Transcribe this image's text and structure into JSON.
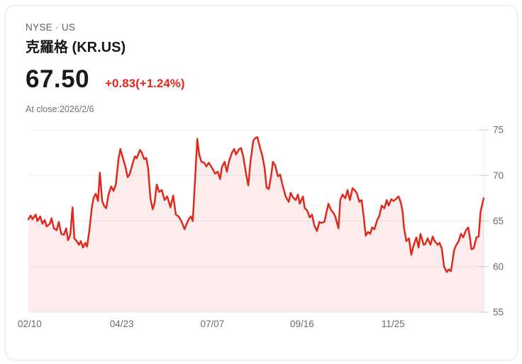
{
  "header": {
    "exchange_line": "NYSE · US",
    "stock_name": "克羅格 (KR.US)",
    "price": "67.50",
    "change": "+0.83(+1.24%)",
    "as_of": "At close:2026/2/6"
  },
  "colors": {
    "line": "#dd2a1e",
    "fill": "rgba(224,38,30,0.085)",
    "change_text": "#e2271d",
    "grid": "#ededf0",
    "tick": "#c7c7cc",
    "axis_line": "#e8e8ec",
    "axis_text": "#6b6b70",
    "card_border": "#e2e6f0"
  },
  "chart_data": {
    "type": "area",
    "title": "KR.US 1-year closing price",
    "xlabel": "",
    "ylabel": "",
    "legend": "none",
    "grid": true,
    "y_axis": {
      "position": "right",
      "min": 55,
      "max": 75,
      "ticks": [
        75,
        70,
        65,
        60,
        55
      ]
    },
    "x_axis": {
      "labels": [
        {
          "label": "02/10",
          "f": 0.003
        },
        {
          "label": "04/23",
          "f": 0.205
        },
        {
          "label": "07/07",
          "f": 0.404
        },
        {
          "label": "09/16",
          "f": 0.601
        },
        {
          "label": "11/25",
          "f": 0.801
        }
      ]
    },
    "series": [
      {
        "name": "close",
        "points": [
          [
            0.0,
            65.2
          ],
          [
            0.005,
            65.6
          ],
          [
            0.009,
            65.2
          ],
          [
            0.016,
            65.7
          ],
          [
            0.02,
            65.0
          ],
          [
            0.026,
            65.5
          ],
          [
            0.031,
            64.7
          ],
          [
            0.036,
            65.1
          ],
          [
            0.04,
            64.4
          ],
          [
            0.047,
            64.7
          ],
          [
            0.051,
            65.3
          ],
          [
            0.056,
            64.2
          ],
          [
            0.062,
            64.0
          ],
          [
            0.067,
            64.9
          ],
          [
            0.072,
            63.6
          ],
          [
            0.078,
            63.5
          ],
          [
            0.083,
            64.2
          ],
          [
            0.087,
            62.9
          ],
          [
            0.092,
            63.5
          ],
          [
            0.097,
            66.5
          ],
          [
            0.101,
            63.1
          ],
          [
            0.106,
            62.8
          ],
          [
            0.111,
            62.4
          ],
          [
            0.115,
            62.8
          ],
          [
            0.12,
            62.1
          ],
          [
            0.125,
            62.6
          ],
          [
            0.129,
            62.2
          ],
          [
            0.134,
            64.0
          ],
          [
            0.139,
            66.3
          ],
          [
            0.143,
            67.5
          ],
          [
            0.148,
            68.0
          ],
          [
            0.153,
            67.2
          ],
          [
            0.157,
            70.3
          ],
          [
            0.162,
            67.2
          ],
          [
            0.167,
            66.6
          ],
          [
            0.171,
            66.4
          ],
          [
            0.176,
            67.9
          ],
          [
            0.182,
            68.8
          ],
          [
            0.187,
            68.3
          ],
          [
            0.192,
            69.0
          ],
          [
            0.198,
            71.8
          ],
          [
            0.202,
            72.9
          ],
          [
            0.207,
            72.0
          ],
          [
            0.213,
            71.0
          ],
          [
            0.218,
            69.8
          ],
          [
            0.223,
            70.2
          ],
          [
            0.229,
            71.3
          ],
          [
            0.234,
            72.1
          ],
          [
            0.238,
            71.9
          ],
          [
            0.245,
            72.8
          ],
          [
            0.249,
            72.5
          ],
          [
            0.254,
            71.8
          ],
          [
            0.259,
            71.9
          ],
          [
            0.263,
            70.8
          ],
          [
            0.268,
            67.5
          ],
          [
            0.273,
            66.3
          ],
          [
            0.277,
            66.9
          ],
          [
            0.282,
            69.0
          ],
          [
            0.287,
            68.2
          ],
          [
            0.293,
            68.4
          ],
          [
            0.299,
            67.3
          ],
          [
            0.305,
            67.7
          ],
          [
            0.312,
            66.5
          ],
          [
            0.318,
            67.8
          ],
          [
            0.324,
            65.7
          ],
          [
            0.33,
            65.5
          ],
          [
            0.336,
            65.0
          ],
          [
            0.343,
            64.1
          ],
          [
            0.347,
            64.6
          ],
          [
            0.352,
            65.2
          ],
          [
            0.357,
            65.5
          ],
          [
            0.361,
            65.0
          ],
          [
            0.366,
            69.5
          ],
          [
            0.371,
            74.0
          ],
          [
            0.375,
            72.3
          ],
          [
            0.38,
            71.5
          ],
          [
            0.386,
            71.4
          ],
          [
            0.391,
            71.0
          ],
          [
            0.396,
            71.4
          ],
          [
            0.4,
            71.1
          ],
          [
            0.405,
            70.7
          ],
          [
            0.41,
            70.2
          ],
          [
            0.416,
            70.4
          ],
          [
            0.421,
            69.6
          ],
          [
            0.425,
            70.9
          ],
          [
            0.431,
            71.5
          ],
          [
            0.436,
            70.4
          ],
          [
            0.441,
            71.6
          ],
          [
            0.447,
            72.5
          ],
          [
            0.452,
            72.9
          ],
          [
            0.456,
            72.3
          ],
          [
            0.463,
            72.9
          ],
          [
            0.467,
            73.0
          ],
          [
            0.472,
            72.1
          ],
          [
            0.478,
            70.2
          ],
          [
            0.483,
            68.9
          ],
          [
            0.487,
            71.2
          ],
          [
            0.494,
            73.8
          ],
          [
            0.498,
            74.1
          ],
          [
            0.503,
            74.2
          ],
          [
            0.509,
            73.0
          ],
          [
            0.514,
            72.1
          ],
          [
            0.519,
            70.8
          ],
          [
            0.523,
            68.7
          ],
          [
            0.528,
            68.5
          ],
          [
            0.533,
            69.9
          ],
          [
            0.537,
            71.5
          ],
          [
            0.542,
            71.1
          ],
          [
            0.548,
            69.9
          ],
          [
            0.553,
            70.1
          ],
          [
            0.558,
            69.0
          ],
          [
            0.565,
            67.7
          ],
          [
            0.572,
            67.1
          ],
          [
            0.576,
            68.1
          ],
          [
            0.581,
            67.6
          ],
          [
            0.587,
            67.3
          ],
          [
            0.592,
            67.9
          ],
          [
            0.596,
            66.9
          ],
          [
            0.603,
            67.7
          ],
          [
            0.607,
            66.4
          ],
          [
            0.612,
            66.2
          ],
          [
            0.618,
            65.4
          ],
          [
            0.623,
            65.7
          ],
          [
            0.628,
            64.5
          ],
          [
            0.634,
            63.9
          ],
          [
            0.639,
            64.9
          ],
          [
            0.643,
            64.8
          ],
          [
            0.65,
            64.9
          ],
          [
            0.654,
            65.8
          ],
          [
            0.659,
            66.9
          ],
          [
            0.665,
            66.2
          ],
          [
            0.67,
            65.9
          ],
          [
            0.674,
            65.5
          ],
          [
            0.681,
            64.2
          ],
          [
            0.685,
            67.3
          ],
          [
            0.69,
            67.9
          ],
          [
            0.696,
            67.5
          ],
          [
            0.701,
            68.4
          ],
          [
            0.706,
            67.3
          ],
          [
            0.712,
            68.6
          ],
          [
            0.716,
            68.4
          ],
          [
            0.721,
            68.1
          ],
          [
            0.727,
            67.1
          ],
          [
            0.732,
            67.3
          ],
          [
            0.737,
            65.2
          ],
          [
            0.741,
            63.4
          ],
          [
            0.746,
            63.8
          ],
          [
            0.751,
            63.6
          ],
          [
            0.755,
            64.3
          ],
          [
            0.76,
            64.1
          ],
          [
            0.766,
            65.1
          ],
          [
            0.771,
            65.6
          ],
          [
            0.776,
            66.7
          ],
          [
            0.782,
            66.4
          ],
          [
            0.787,
            67.3
          ],
          [
            0.791,
            66.7
          ],
          [
            0.797,
            67.4
          ],
          [
            0.802,
            67.2
          ],
          [
            0.807,
            67.4
          ],
          [
            0.813,
            67.7
          ],
          [
            0.818,
            67.0
          ],
          [
            0.822,
            66.0
          ],
          [
            0.825,
            64.3
          ],
          [
            0.83,
            62.8
          ],
          [
            0.836,
            63.1
          ],
          [
            0.841,
            61.3
          ],
          [
            0.846,
            62.3
          ],
          [
            0.852,
            63.2
          ],
          [
            0.857,
            62.1
          ],
          [
            0.861,
            63.6
          ],
          [
            0.868,
            62.4
          ],
          [
            0.872,
            62.5
          ],
          [
            0.877,
            63.1
          ],
          [
            0.883,
            62.4
          ],
          [
            0.888,
            63.3
          ],
          [
            0.892,
            62.8
          ],
          [
            0.899,
            62.4
          ],
          [
            0.903,
            62.6
          ],
          [
            0.908,
            62.0
          ],
          [
            0.913,
            60.0
          ],
          [
            0.919,
            59.4
          ],
          [
            0.923,
            59.7
          ],
          [
            0.928,
            59.5
          ],
          [
            0.935,
            61.8
          ],
          [
            0.939,
            62.3
          ],
          [
            0.945,
            62.8
          ],
          [
            0.95,
            63.6
          ],
          [
            0.955,
            63.2
          ],
          [
            0.961,
            64.0
          ],
          [
            0.966,
            64.3
          ],
          [
            0.97,
            63.1
          ],
          [
            0.973,
            61.9
          ],
          [
            0.978,
            62.0
          ],
          [
            0.984,
            63.2
          ],
          [
            0.989,
            63.3
          ],
          [
            0.993,
            66.0
          ],
          [
            0.998,
            67.1
          ],
          [
            1.0,
            67.5
          ]
        ]
      }
    ]
  }
}
